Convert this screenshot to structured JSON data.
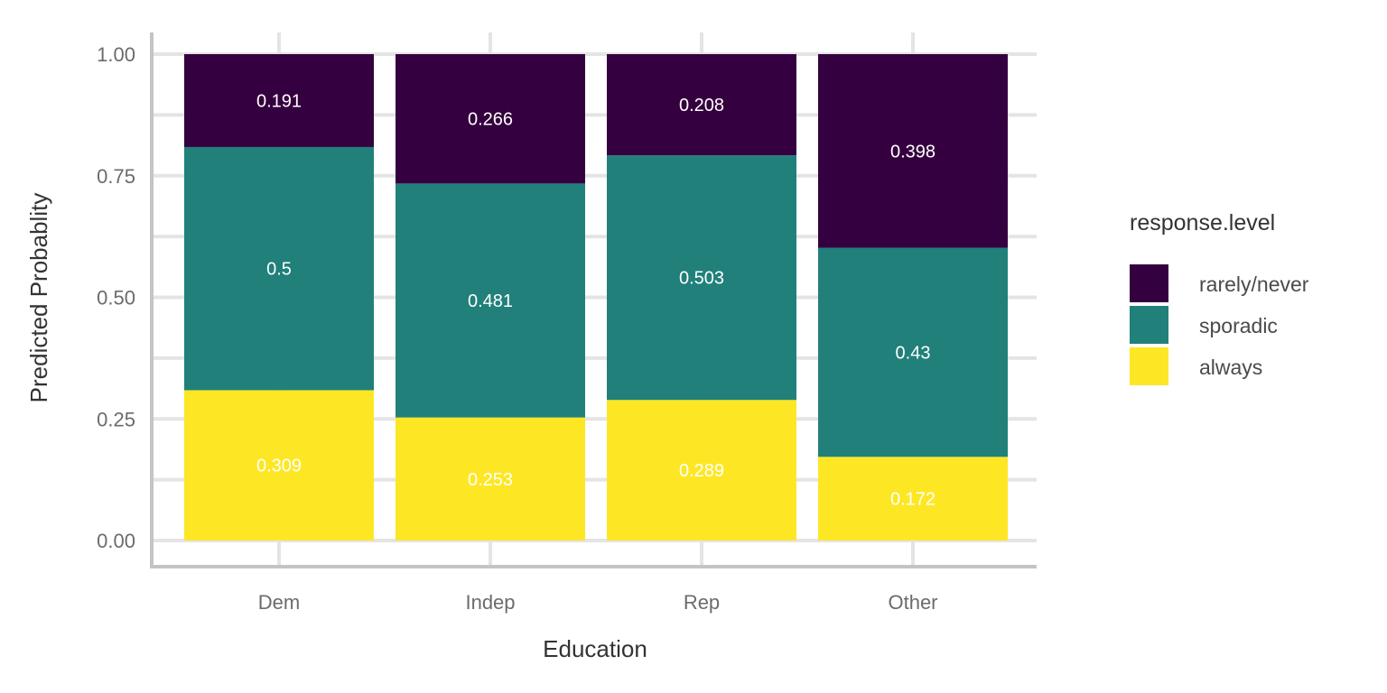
{
  "chart_data": {
    "type": "bar",
    "stacked": true,
    "categories": [
      "Dem",
      "Indep",
      "Rep",
      "Other"
    ],
    "series": [
      {
        "name": "always",
        "color": "#fde725",
        "values": [
          0.309,
          0.253,
          0.289,
          0.172
        ]
      },
      {
        "name": "sporadic",
        "color": "#21807a",
        "values": [
          0.5,
          0.481,
          0.503,
          0.43
        ]
      },
      {
        "name": "rarely/never",
        "color": "#35003f",
        "values": [
          0.191,
          0.266,
          0.208,
          0.398
        ]
      }
    ],
    "xlabel": "Education",
    "ylabel": "Predicted Probablity",
    "ylim": [
      0,
      1
    ],
    "yticks": [
      0,
      0.25,
      0.5,
      0.75,
      1
    ],
    "ytick_labels": [
      "0.00",
      "0.25",
      "0.50",
      "0.75",
      "1.00"
    ],
    "grid": true,
    "legend": {
      "title": "response.level",
      "position": "right",
      "order": [
        "rarely/never",
        "sporadic",
        "always"
      ]
    }
  }
}
